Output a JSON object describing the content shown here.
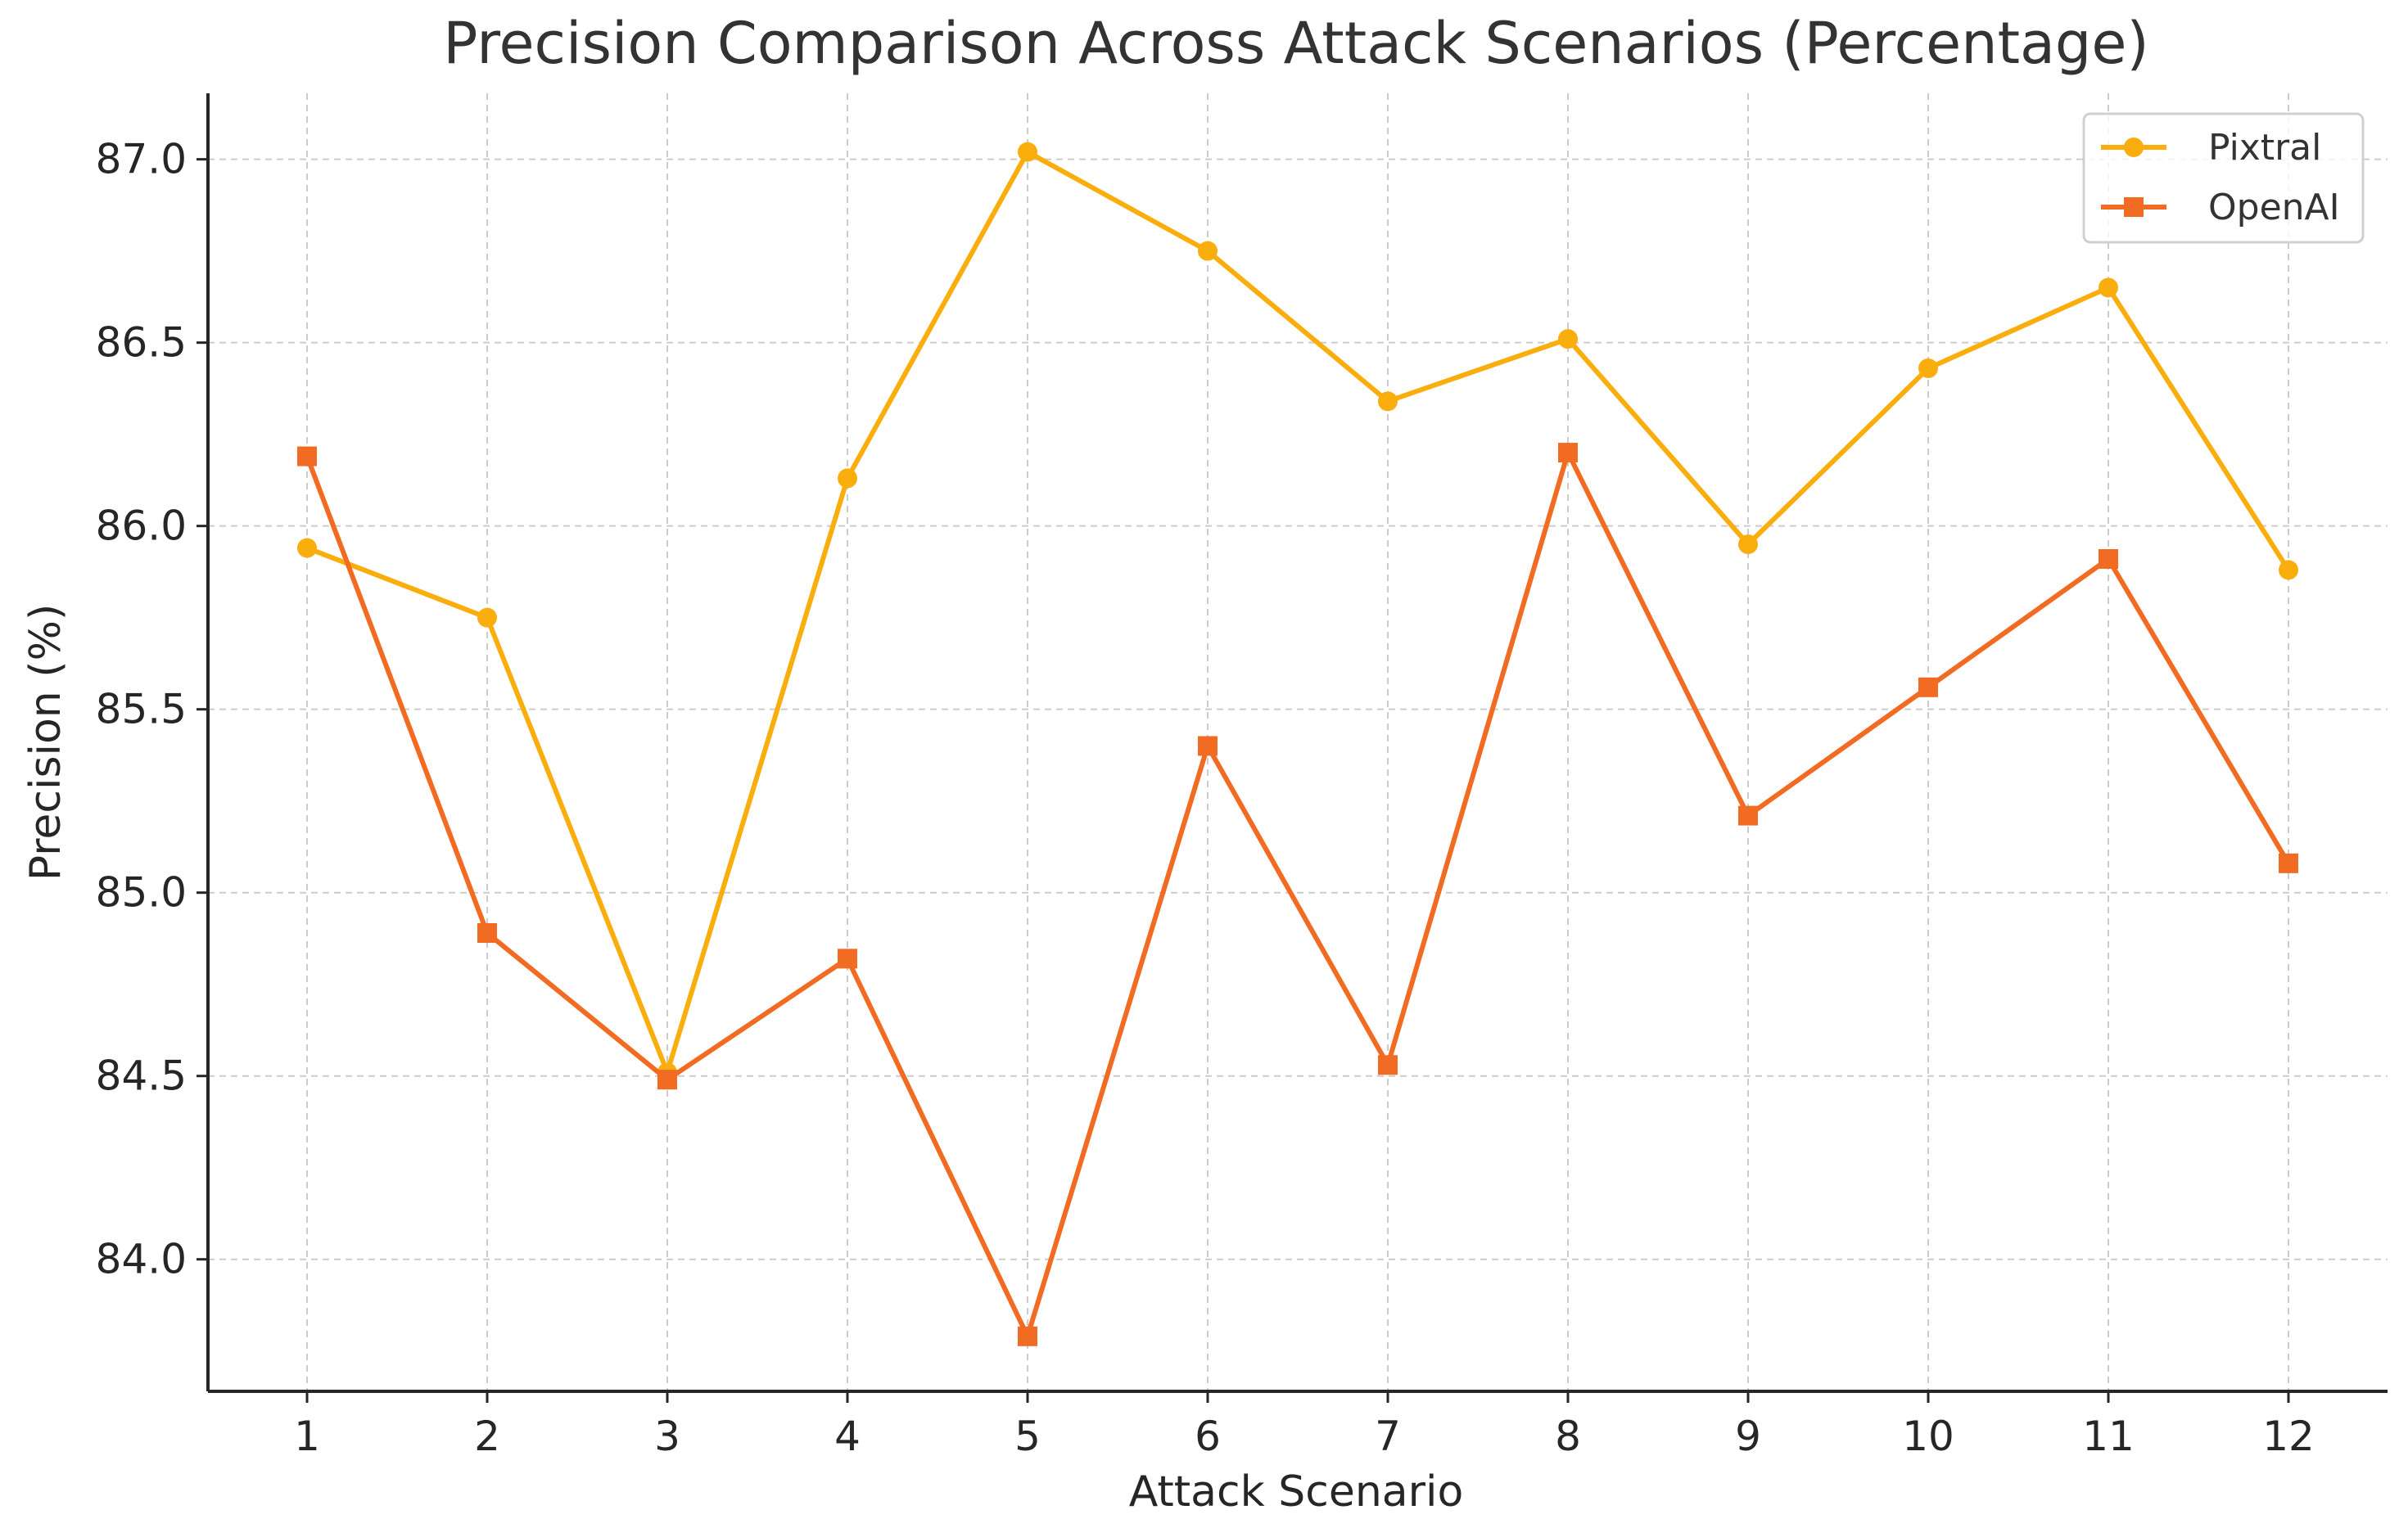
{
  "chart_data": {
    "type": "line",
    "title": "Precision Comparison Across Attack Scenarios (Percentage)",
    "xlabel": "Attack Scenario",
    "ylabel": "Precision (%)",
    "x": [
      1,
      2,
      3,
      4,
      5,
      6,
      7,
      8,
      9,
      10,
      11,
      12
    ],
    "x_tick_labels": [
      "1",
      "2",
      "3",
      "4",
      "5",
      "6",
      "7",
      "8",
      "9",
      "10",
      "11",
      "12"
    ],
    "y_ticks": [
      84.0,
      84.5,
      85.0,
      85.5,
      86.0,
      86.5,
      87.0
    ],
    "y_tick_labels": [
      "84.0",
      "84.5",
      "85.0",
      "85.5",
      "86.0",
      "86.5",
      "87.0"
    ],
    "xlim": [
      0.45,
      12.55
    ],
    "ylim": [
      83.64,
      87.18
    ],
    "grid": true,
    "legend_position": "top-right",
    "series": [
      {
        "name": "Pixtral",
        "marker": "circle",
        "color": "#F9AE0E",
        "values": [
          85.94,
          85.75,
          84.51,
          86.13,
          87.02,
          86.75,
          86.34,
          86.51,
          85.95,
          86.43,
          86.65,
          85.88
        ]
      },
      {
        "name": "OpenAI",
        "marker": "square",
        "color": "#F26B23",
        "values": [
          86.19,
          84.89,
          84.49,
          84.82,
          83.79,
          85.4,
          84.53,
          86.2,
          85.21,
          85.56,
          85.91,
          85.08
        ]
      }
    ]
  }
}
